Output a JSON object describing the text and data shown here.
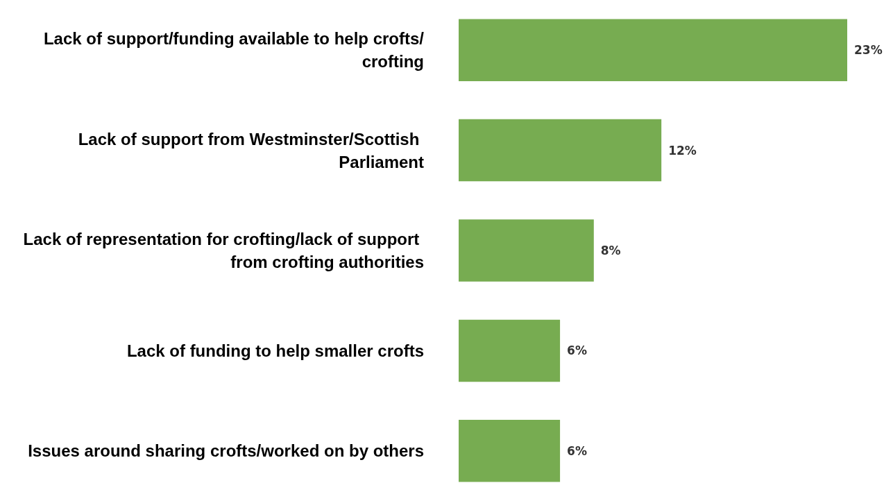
{
  "chart_data": {
    "type": "bar",
    "orientation": "horizontal",
    "relative": false,
    "categories": [
      "Lack of support/funding available to help crofts/crofting",
      "Lack of support from Westminster/Scottish Parliament",
      "Lack of representation for crofting/lack of support from crofting authorities",
      "Lack of funding to help smaller crofts",
      "Issues around sharing crofts/worked on by others"
    ],
    "values": [
      23,
      12,
      8,
      6,
      6
    ],
    "value_labels": [
      "23%",
      "12%",
      "8%",
      "6%",
      "6%"
    ],
    "color": "#77ac51"
  }
}
